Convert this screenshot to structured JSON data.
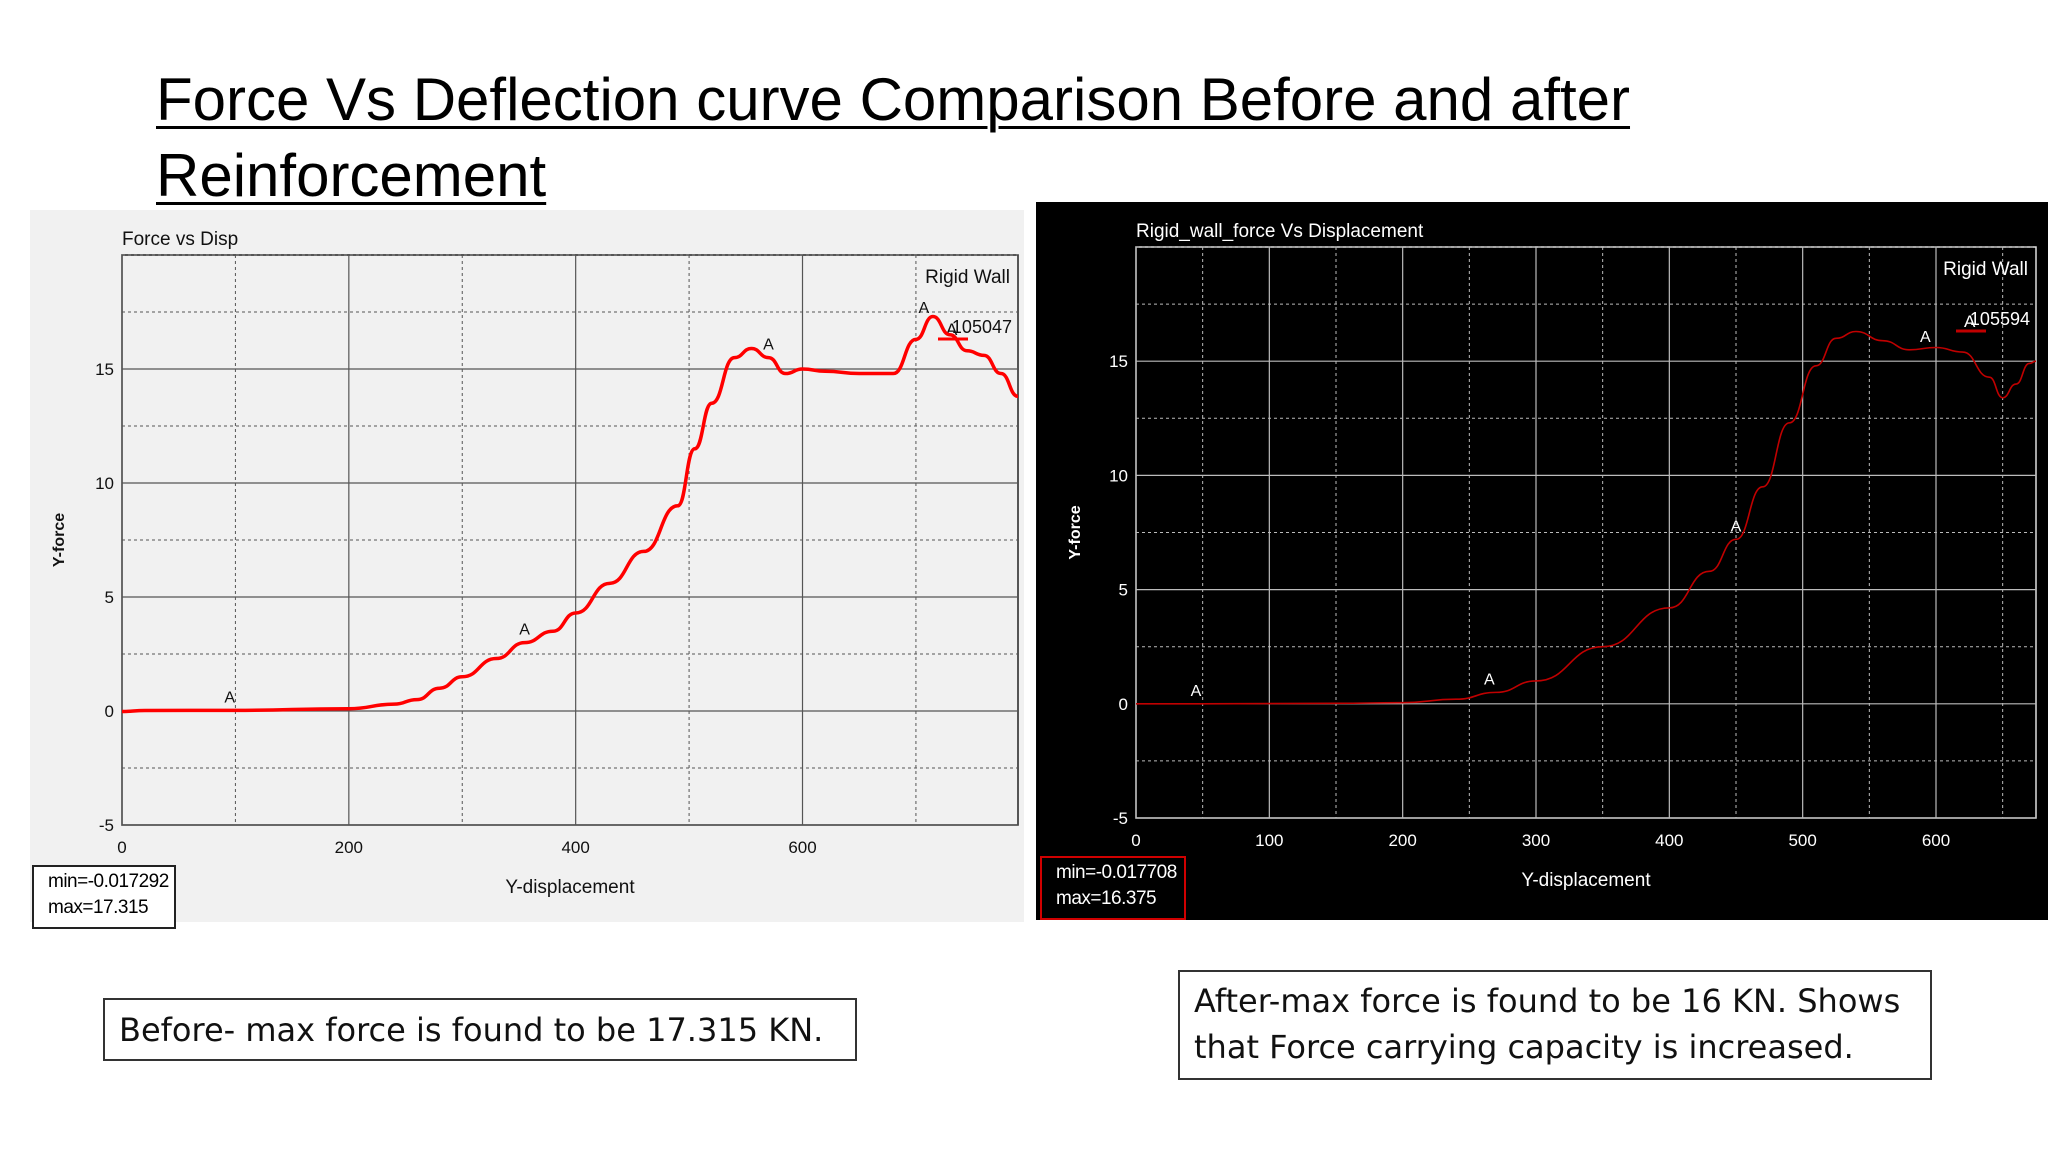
{
  "slide": {
    "title_line1": "Force Vs Deflection curve Comparison Before and after",
    "title_line2": "Reinforcement"
  },
  "captions": {
    "before": "Before- max force is found to be 17.315 KN.",
    "after_line1": "After-max force is found to be 16 KN. Shows",
    "after_line2": "that Force carrying capacity is increased."
  },
  "chart_data": [
    {
      "type": "line",
      "title": "Force vs Disp",
      "xlabel": "Y-displacement",
      "ylabel": "Y-force",
      "xlim": [
        0,
        790
      ],
      "ylim": [
        -5,
        20
      ],
      "x_ticks": [
        0,
        200,
        400,
        600
      ],
      "y_ticks": [
        -5,
        0,
        5,
        10,
        15
      ],
      "grid": true,
      "legend_title": "Rigid Wall",
      "series": [
        {
          "name": "105047",
          "marker_label": "A",
          "color": "#ff0000",
          "x": [
            0,
            20,
            100,
            200,
            240,
            260,
            280,
            300,
            330,
            355,
            380,
            400,
            430,
            460,
            490,
            505,
            520,
            540,
            555,
            570,
            585,
            600,
            620,
            650,
            680,
            700,
            715,
            730,
            745,
            760,
            775,
            790
          ],
          "y": [
            -0.02,
            0.02,
            0.03,
            0.1,
            0.3,
            0.5,
            1.0,
            1.5,
            2.3,
            3.0,
            3.5,
            4.3,
            5.6,
            7.0,
            9.0,
            11.5,
            13.5,
            15.5,
            15.9,
            15.5,
            14.8,
            15.0,
            14.9,
            14.8,
            14.8,
            16.3,
            17.3,
            16.5,
            15.8,
            15.6,
            14.8,
            13.8
          ]
        }
      ],
      "markers": [
        {
          "label": "A",
          "x": 95,
          "y": 0.03
        },
        {
          "label": "A",
          "x": 355,
          "y": 3.0
        },
        {
          "label": "A",
          "x": 570,
          "y": 15.5
        },
        {
          "label": "A",
          "x": 707,
          "y": 17.1
        }
      ],
      "min_label": "min=-0.017292",
      "max_label": "max=17.315"
    },
    {
      "type": "line",
      "title": "Rigid_wall_force Vs Displacement",
      "xlabel": "Y-displacement",
      "ylabel": "Y-force",
      "xlim": [
        0,
        675
      ],
      "ylim": [
        -5,
        20
      ],
      "x_ticks": [
        0,
        100,
        200,
        300,
        400,
        500,
        600
      ],
      "y_ticks": [
        -5,
        0,
        5,
        10,
        15
      ],
      "grid": true,
      "legend_title": "Rigid Wall",
      "series": [
        {
          "name": "105594",
          "marker_label": "A",
          "color": "#c00000",
          "x": [
            0,
            50,
            150,
            200,
            240,
            270,
            300,
            350,
            400,
            430,
            450,
            470,
            490,
            510,
            525,
            540,
            560,
            580,
            600,
            620,
            640,
            650,
            660,
            670,
            675
          ],
          "y": [
            0,
            0,
            0.02,
            0.05,
            0.2,
            0.5,
            1.0,
            2.5,
            4.2,
            5.8,
            7.2,
            9.5,
            12.3,
            14.8,
            16.0,
            16.3,
            15.9,
            15.5,
            15.6,
            15.4,
            14.3,
            13.4,
            14.0,
            14.9,
            15.0
          ]
        }
      ],
      "markers": [
        {
          "label": "A",
          "x": 45,
          "y": 0
        },
        {
          "label": "A",
          "x": 265,
          "y": 0.5
        },
        {
          "label": "A",
          "x": 450,
          "y": 7.2
        },
        {
          "label": "A",
          "x": 592,
          "y": 15.5
        }
      ],
      "min_label": "min=-0.017708",
      "max_label": "max=16.375"
    }
  ]
}
